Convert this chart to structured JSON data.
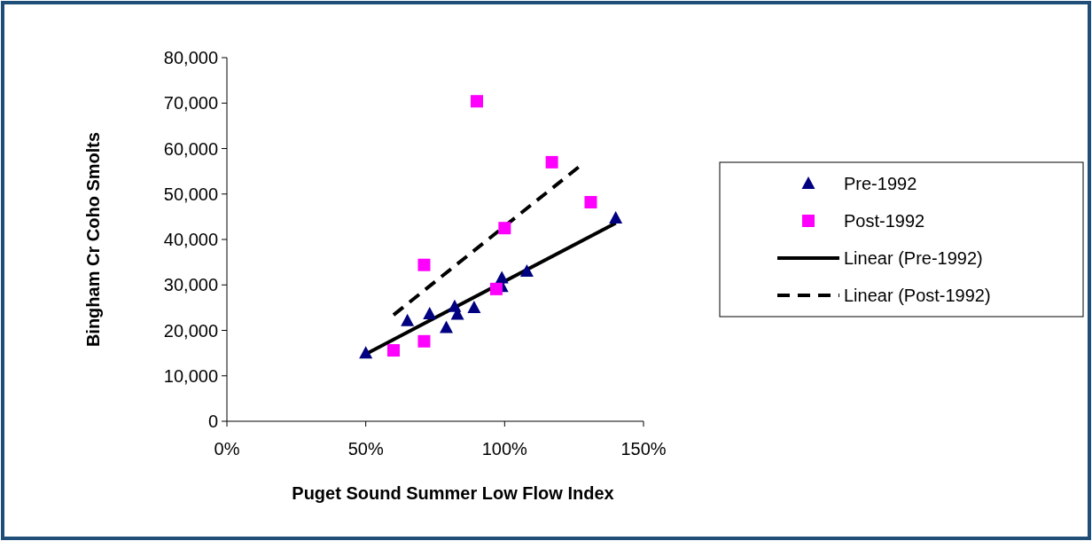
{
  "chart_data": {
    "type": "scatter",
    "xlabel": "Puget Sound Summer Low Flow Index",
    "ylabel": "Bingham Cr Coho Smolts",
    "xlim": [
      0,
      150
    ],
    "xticks": [
      {
        "value": 0,
        "label": "0%"
      },
      {
        "value": 50,
        "label": "50%"
      },
      {
        "value": 100,
        "label": "100%"
      },
      {
        "value": 150,
        "label": "150%"
      }
    ],
    "ylim": [
      0,
      80000
    ],
    "yticks": [
      {
        "value": 0,
        "label": "0"
      },
      {
        "value": 10000,
        "label": "10,000"
      },
      {
        "value": 20000,
        "label": "20,000"
      },
      {
        "value": 30000,
        "label": "30,000"
      },
      {
        "value": 40000,
        "label": "40,000"
      },
      {
        "value": 50000,
        "label": "50,000"
      },
      {
        "value": 60000,
        "label": "60,000"
      },
      {
        "value": 70000,
        "label": "70,000"
      },
      {
        "value": 80000,
        "label": "80,000"
      }
    ],
    "grid": false,
    "legend": "right",
    "series": [
      {
        "name": "Pre-1992",
        "marker": "triangle",
        "color": "#000080",
        "x": [
          50,
          65,
          73,
          79,
          82,
          83,
          89,
          99,
          99,
          108,
          140
        ],
        "values": [
          15000,
          22100,
          23600,
          20600,
          25200,
          23500,
          25000,
          31500,
          29600,
          33000,
          44700
        ]
      },
      {
        "name": "Post-1992",
        "marker": "square",
        "color": "#ff00ff",
        "x": [
          60,
          71,
          71,
          90,
          97,
          100,
          117,
          131
        ],
        "values": [
          15600,
          17600,
          34400,
          70400,
          29100,
          42500,
          57000,
          48200
        ]
      },
      {
        "name": "Linear (Pre-1992)",
        "type": "line",
        "line_style": "solid",
        "color": "#000000",
        "x": [
          50,
          140
        ],
        "values": [
          14800,
          43600
        ]
      },
      {
        "name": "Linear (Post-1992)",
        "type": "line",
        "line_style": "dashed",
        "color": "#000000",
        "x": [
          60,
          127
        ],
        "values": [
          23400,
          56100
        ]
      }
    ]
  }
}
